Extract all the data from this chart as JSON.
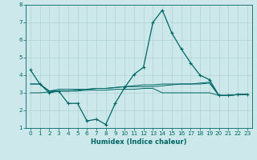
{
  "title": "",
  "xlabel": "Humidex (Indice chaleur)",
  "background_color": "#cce8ea",
  "grid_color": "#aacccc",
  "line_color": "#006666",
  "xlim": [
    -0.5,
    23.5
  ],
  "ylim": [
    1,
    8
  ],
  "yticks": [
    1,
    2,
    3,
    4,
    5,
    6,
    7,
    8
  ],
  "xticks": [
    0,
    1,
    2,
    3,
    4,
    5,
    6,
    7,
    8,
    9,
    10,
    11,
    12,
    13,
    14,
    15,
    16,
    17,
    18,
    19,
    20,
    21,
    22,
    23
  ],
  "series_main": [
    4.3,
    3.5,
    3.0,
    3.1,
    2.4,
    2.4,
    1.4,
    1.5,
    1.2,
    2.4,
    3.3,
    4.05,
    4.45,
    7.0,
    7.7,
    6.4,
    5.5,
    4.7,
    4.0,
    3.75,
    2.85,
    2.85,
    2.9,
    2.9
  ],
  "series_flat1": [
    3.5,
    3.5,
    3.1,
    3.1,
    3.1,
    3.15,
    3.2,
    3.25,
    3.25,
    3.3,
    3.35,
    3.35,
    3.35,
    3.35,
    3.4,
    3.45,
    3.5,
    3.5,
    3.5,
    3.55,
    2.85,
    2.85,
    2.9,
    2.9
  ],
  "series_flat2": [
    3.0,
    3.0,
    3.05,
    3.1,
    3.1,
    3.1,
    3.15,
    3.15,
    3.15,
    3.2,
    3.2,
    3.2,
    3.25,
    3.25,
    3.0,
    3.0,
    3.0,
    3.0,
    3.0,
    3.0,
    2.85,
    2.85,
    2.9,
    2.9
  ],
  "series_flat3": [
    3.5,
    3.5,
    3.1,
    3.2,
    3.2,
    3.2,
    3.2,
    3.25,
    3.25,
    3.3,
    3.35,
    3.4,
    3.45,
    3.45,
    3.5,
    3.5,
    3.5,
    3.5,
    3.55,
    3.6,
    2.85,
    2.85,
    2.9,
    2.9
  ],
  "xlabel_fontsize": 6.0,
  "tick_fontsize": 5.2,
  "linewidth_main": 0.9,
  "linewidth_flat": 0.7,
  "marker_size": 3.5
}
